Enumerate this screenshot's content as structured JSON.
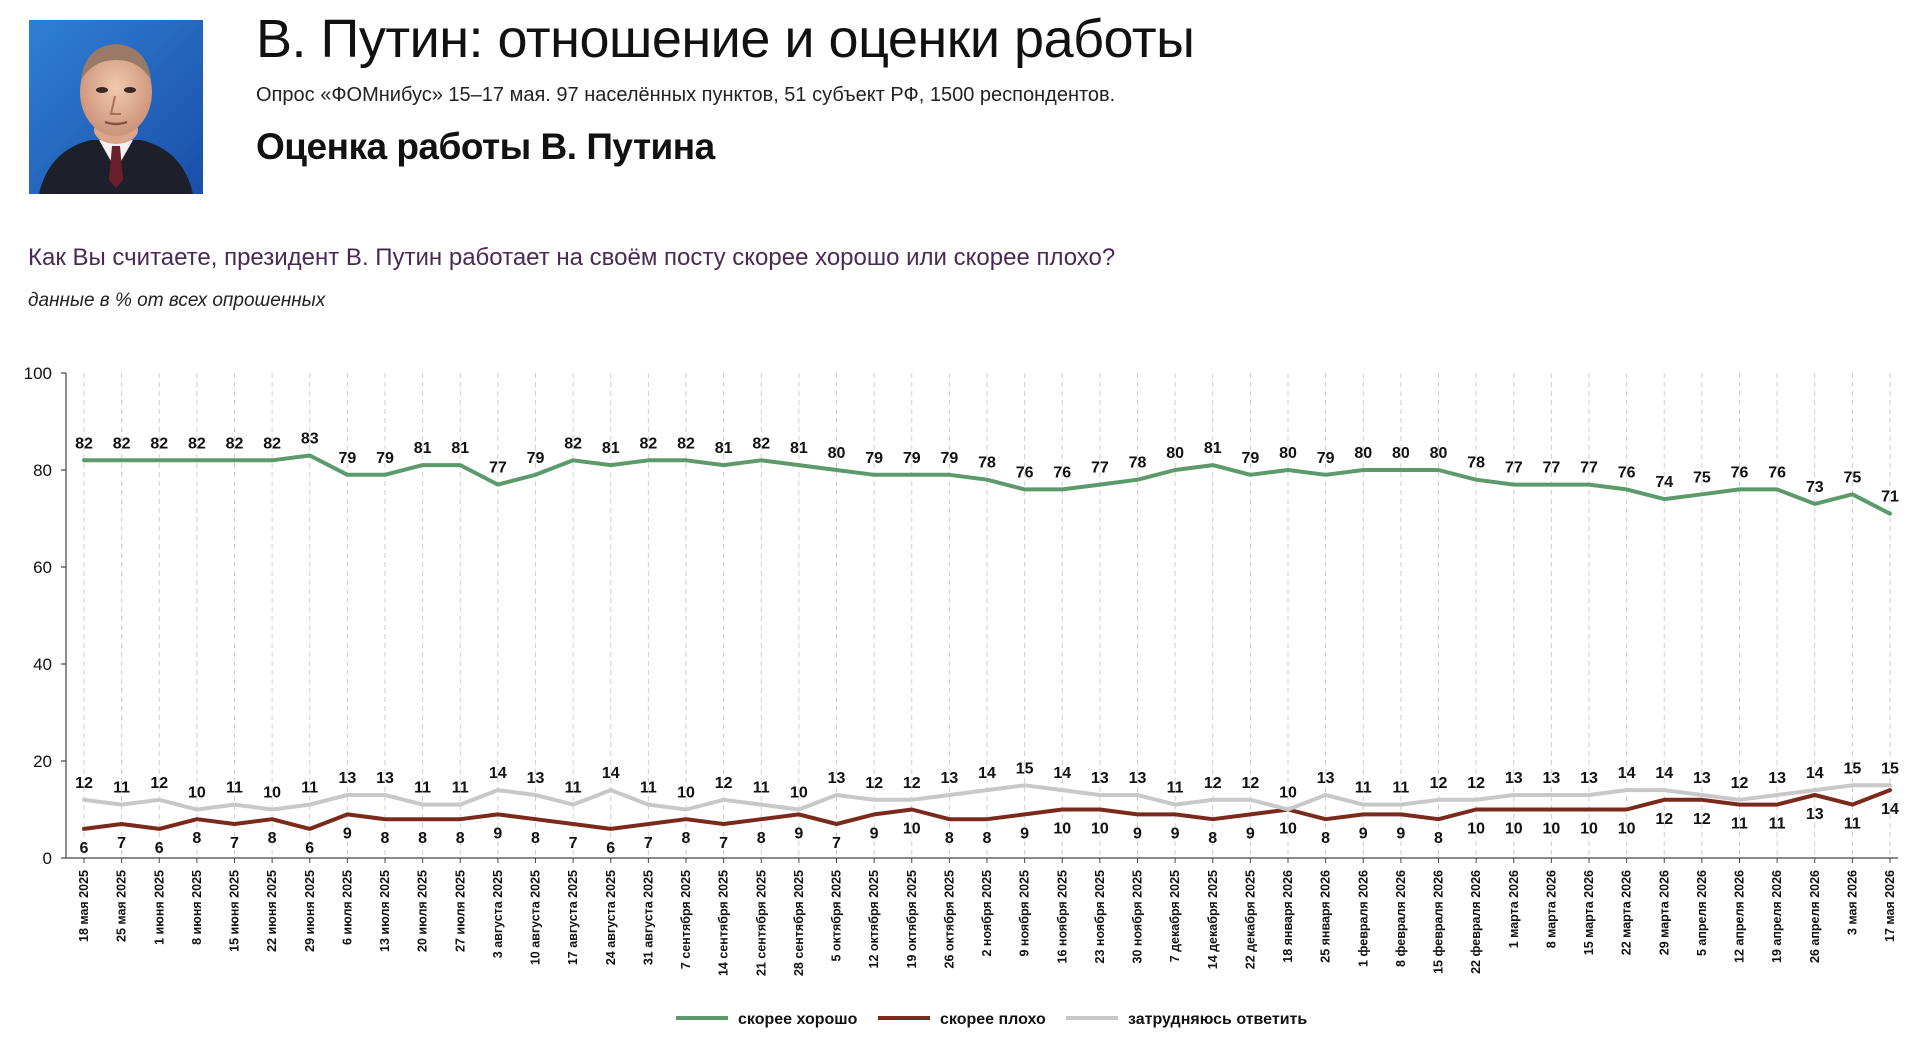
{
  "header": {
    "title": "В. Путин: отношение и оценки работы",
    "meta": "Опрос «ФОМнибус» 15–17 мая. 97 населённых пунктов, 51 субъект РФ, 1500 респондентов.",
    "subtitle": "Оценка работы В. Путина"
  },
  "question": "Как Вы считаете, президент В. Путин работает на своём посту скорее хорошо или скорее плохо?",
  "note": "данные в % от всех опрошенных",
  "colors": {
    "good": "#5c9a6c",
    "bad": "#7a2a1a",
    "unsure": "#c8c8c8",
    "question": "#4a2a55"
  },
  "chart_data": {
    "type": "line",
    "title": "Оценка работы В. Путина",
    "xlabel": "",
    "ylabel": "",
    "ylim": [
      0,
      100
    ],
    "yticks": [
      0,
      20,
      40,
      60,
      80,
      100
    ],
    "grid": "vertical dashed",
    "legend": "bottom",
    "x": [
      "18 мая 2025",
      "25 мая 2025",
      "1 июня 2025",
      "8 июня 2025",
      "15 июня 2025",
      "22 июня 2025",
      "29 июня 2025",
      "6 июля 2025",
      "13 июля 2025",
      "20 июля 2025",
      "27 июля 2025",
      "3 августа 2025",
      "10 августа 2025",
      "17 августа 2025",
      "24 августа 2025",
      "31 августа 2025",
      "7 сентября 2025",
      "14 сентября 2025",
      "21 сентября 2025",
      "28 сентября 2025",
      "5 октября 2025",
      "12 октября 2025",
      "19 октября 2025",
      "26 октября 2025",
      "2 ноября 2025",
      "9 ноября 2025",
      "16 ноября 2025",
      "23 ноября 2025",
      "30 ноября 2025",
      "7 декабря 2025",
      "14 декабря 2025",
      "22 декабря 2025",
      "18 января 2026",
      "25 января 2026",
      "1 февраля 2026",
      "8 февраля 2026",
      "15 февраля 2026",
      "22 февраля 2026",
      "1 марта 2026",
      "8 марта 2026",
      "15 марта 2026",
      "22 марта 2026",
      "29 марта 2026",
      "5 апреля 2026",
      "12 апреля 2026",
      "19 апреля 2026",
      "26 апреля 2026",
      "3 мая 2026",
      "17 мая 2026"
    ],
    "series": [
      {
        "name": "скорее хорошо",
        "color": "#5c9a6c",
        "values": [
          82,
          82,
          82,
          82,
          82,
          82,
          83,
          79,
          79,
          81,
          81,
          77,
          79,
          82,
          81,
          82,
          82,
          81,
          82,
          81,
          80,
          79,
          79,
          79,
          78,
          76,
          76,
          77,
          78,
          80,
          81,
          79,
          80,
          79,
          80,
          80,
          80,
          78,
          77,
          77,
          77,
          76,
          74,
          75,
          76,
          76,
          73,
          75,
          71
        ]
      },
      {
        "name": "скорее плохо",
        "color": "#7a2a1a",
        "values": [
          6,
          7,
          6,
          8,
          7,
          8,
          6,
          9,
          8,
          8,
          8,
          9,
          8,
          7,
          6,
          7,
          8,
          7,
          8,
          9,
          7,
          9,
          10,
          8,
          8,
          9,
          10,
          10,
          9,
          9,
          8,
          9,
          10,
          8,
          9,
          9,
          8,
          10,
          10,
          10,
          10,
          10,
          12,
          12,
          11,
          11,
          13,
          11,
          14
        ]
      },
      {
        "name": "затрудняюсь ответить",
        "color": "#c8c8c8",
        "values": [
          12,
          11,
          12,
          10,
          11,
          10,
          11,
          13,
          13,
          11,
          11,
          14,
          13,
          11,
          14,
          11,
          10,
          12,
          11,
          10,
          13,
          12,
          12,
          13,
          14,
          15,
          14,
          13,
          13,
          11,
          12,
          12,
          10,
          13,
          11,
          11,
          12,
          12,
          13,
          13,
          13,
          14,
          14,
          13,
          12,
          13,
          14,
          15,
          15
        ]
      }
    ]
  }
}
